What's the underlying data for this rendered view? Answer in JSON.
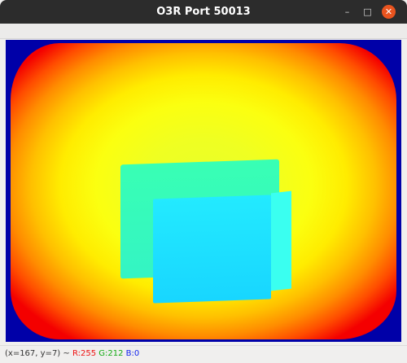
{
  "window": {
    "title": "O3R Port 50013",
    "buttons": {
      "minimize_icon": "minimize-icon",
      "maximize_icon": "maximize-icon",
      "close_icon": "close-icon",
      "minimize_glyph": "–",
      "maximize_glyph": "□",
      "close_glyph": "✕"
    }
  },
  "status": {
    "coords": "(x=167, y=7) ~ ",
    "r": "R:255",
    "g": "G:212",
    "b": "B:0"
  },
  "colors": {
    "titlebar": "#2c2c2c",
    "close_button": "#e9541f",
    "background_blue": "#0000a8",
    "r_text": "#ee1111",
    "g_text": "#11aa11",
    "b_text": "#1122ee"
  }
}
